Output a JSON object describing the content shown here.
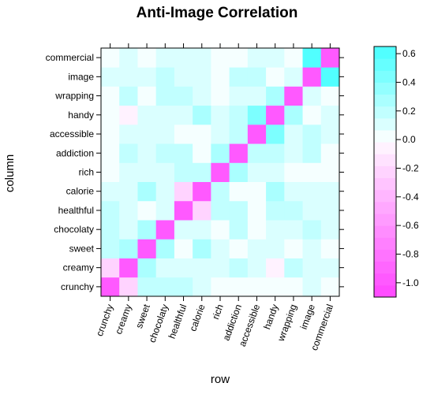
{
  "chart_data": {
    "type": "heatmap",
    "title": "Anti-Image Correlation",
    "xlabel": "row",
    "ylabel": "column",
    "x_categories": [
      "crunchy",
      "creamy",
      "sweet",
      "chocolaty",
      "healthful",
      "calorie",
      "rich",
      "addiction",
      "accessible",
      "handy",
      "wrapping",
      "image",
      "commercial"
    ],
    "y_categories": [
      "crunchy",
      "creamy",
      "sweet",
      "chocolaty",
      "healthful",
      "calorie",
      "rich",
      "addiction",
      "accessible",
      "handy",
      "wrapping",
      "image",
      "commercial"
    ],
    "values": [
      [
        -1.0,
        -0.25,
        0.15,
        0.15,
        0.15,
        0.1,
        0.05,
        0.05,
        0.0,
        0.05,
        0.05,
        0.1,
        0.05
      ],
      [
        -0.25,
        -1.0,
        0.25,
        0.1,
        0.1,
        0.1,
        0.1,
        0.15,
        0.1,
        -0.1,
        0.15,
        0.1,
        0.1
      ],
      [
        0.15,
        0.25,
        -1.0,
        0.25,
        0.05,
        0.3,
        0.1,
        0.1,
        0.1,
        0.1,
        0.0,
        0.1,
        0.05
      ],
      [
        0.15,
        0.1,
        0.25,
        -1.0,
        0.1,
        0.1,
        0.1,
        0.2,
        0.1,
        0.1,
        0.15,
        0.15,
        0.1
      ],
      [
        0.15,
        0.1,
        0.05,
        0.1,
        -1.0,
        -0.2,
        0.15,
        0.15,
        0.05,
        0.1,
        0.2,
        0.1,
        0.1
      ],
      [
        0.1,
        0.1,
        0.3,
        0.1,
        -0.2,
        -1.0,
        0.2,
        0.05,
        0.05,
        0.25,
        0.1,
        0.1,
        0.1
      ],
      [
        0.05,
        0.1,
        0.1,
        0.0,
        0.15,
        0.2,
        -1.0,
        0.25,
        0.1,
        0.1,
        0.05,
        0.05,
        0.05
      ],
      [
        0.05,
        0.15,
        0.0,
        0.2,
        0.15,
        0.05,
        0.25,
        -1.0,
        0.15,
        0.15,
        0.1,
        0.15,
        0.05
      ],
      [
        0.0,
        0.1,
        0.1,
        0.05,
        0.05,
        0.05,
        0.1,
        0.15,
        -1.0,
        0.4,
        0.1,
        0.15,
        0.1
      ],
      [
        0.05,
        -0.1,
        0.1,
        0.1,
        0.15,
        0.25,
        0.1,
        0.15,
        0.4,
        -1.0,
        0.25,
        0.05,
        0.1
      ],
      [
        0.05,
        0.15,
        0.05,
        0.1,
        0.2,
        0.1,
        0.05,
        0.1,
        0.1,
        0.25,
        -1.0,
        0.1,
        0.05
      ],
      [
        0.1,
        0.1,
        0.1,
        0.15,
        0.1,
        0.1,
        0.05,
        0.15,
        0.15,
        0.05,
        0.1,
        -1.0,
        0.6
      ],
      [
        0.05,
        0.1,
        0.05,
        0.1,
        0.1,
        0.1,
        0.05,
        0.05,
        0.1,
        0.1,
        0.05,
        0.6,
        -1.0
      ]
    ],
    "zlim": [
      -1.1,
      0.65
    ],
    "legend_ticks": [
      -1.0,
      -0.8,
      -0.6,
      -0.4,
      -0.2,
      0.0,
      0.2,
      0.4,
      0.6
    ],
    "legend_tick_labels": [
      "-1.0",
      "-0.8",
      "-0.6",
      "-0.4",
      "-0.2",
      "0.0",
      "0.2",
      "0.4",
      "0.6"
    ],
    "legend_placement": "right",
    "colors": {
      "low": "#ff46ff",
      "mid": "#ffffff",
      "high": "#46ffff",
      "axis": "#000000"
    }
  }
}
